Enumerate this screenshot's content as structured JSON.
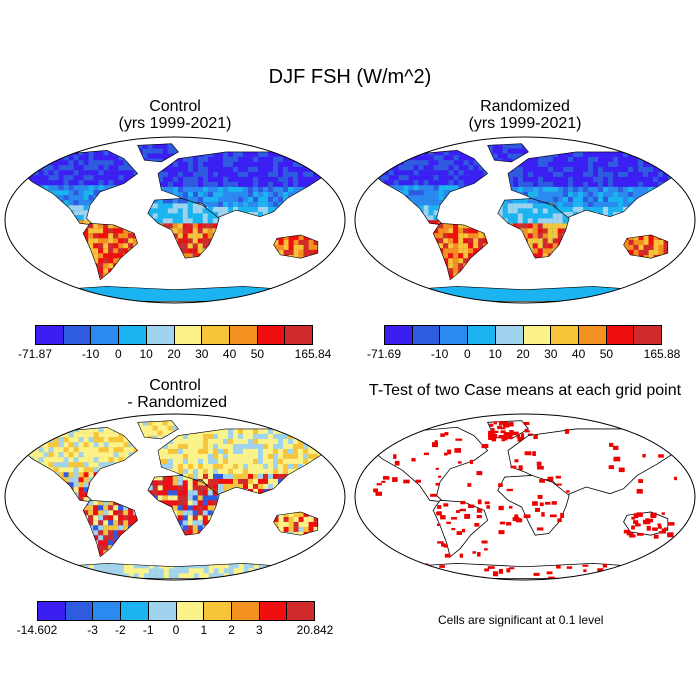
{
  "figure": {
    "title": "DJF FSH (W/m^2)",
    "panels": [
      {
        "id": "control",
        "title": "Control\n(yrs 1999-2021)"
      },
      {
        "id": "randomized",
        "title": "Randomized\n(yrs 1999-2021)"
      },
      {
        "id": "difference",
        "title": "Control\n - Randomized"
      },
      {
        "id": "ttest",
        "title": "T-Test of two Case means at each grid point"
      }
    ],
    "colorbars": [
      {
        "id": "control",
        "labels": [
          "-71.87",
          "-10",
          "0",
          "10",
          "20",
          "30",
          "40",
          "50",
          "165.84"
        ]
      },
      {
        "id": "randomized",
        "labels": [
          "-71.69",
          "-10",
          "0",
          "10",
          "20",
          "30",
          "40",
          "50",
          "165.88"
        ]
      },
      {
        "id": "difference",
        "labels": [
          "-14.602",
          "-3",
          "-2",
          "-1",
          "0",
          "1",
          "2",
          "3",
          "20.842"
        ]
      }
    ],
    "palette": [
      "#3b1ff2",
      "#2e5be0",
      "#2a8af0",
      "#1cb4f0",
      "#9fd3ee",
      "#fbf38a",
      "#f8c43a",
      "#f39220",
      "#f00e0e",
      "#d12a2a"
    ],
    "ttest_color": "#ee0000",
    "note": "Cells are significant at 0.1 level"
  }
}
